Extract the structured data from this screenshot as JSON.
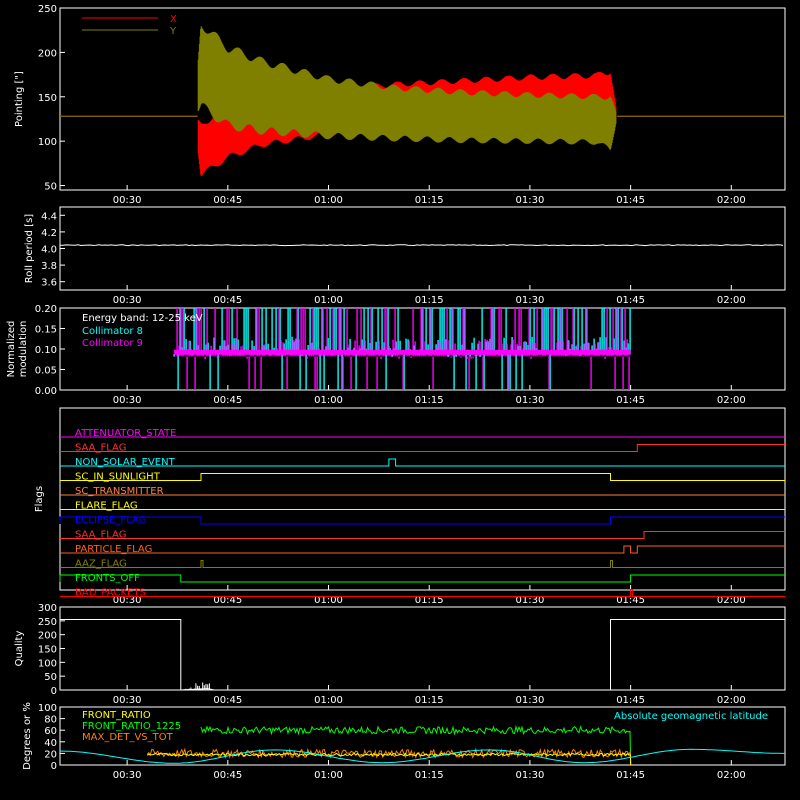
{
  "chart_data": [
    {
      "type": "line",
      "ylabel": "Pointing [\"]",
      "yticks": [
        "50",
        "100",
        "150",
        "200",
        "250"
      ],
      "ylim": [
        45,
        250
      ],
      "xticks": [
        "00:30",
        "00:45",
        "01:00",
        "01:15",
        "01:30",
        "01:45",
        "02:00"
      ],
      "xlim_minutes": [
        20,
        128
      ],
      "legend": [
        "X",
        "Y"
      ],
      "series": [
        {
          "name": "X",
          "color": "#ff0000",
          "x": [
            "00:20",
            "00:40",
            "00:41",
            "00:45",
            "00:50",
            "01:00",
            "01:10",
            "01:20",
            "01:30",
            "01:40",
            "01:42",
            "01:43",
            "02:08"
          ],
          "y_min": [
            128,
            128,
            62,
            82,
            96,
            108,
            114,
            117,
            119,
            120,
            100,
            128,
            128
          ],
          "y_max": [
            128,
            128,
            118,
            138,
            148,
            158,
            164,
            168,
            172,
            174,
            180,
            128,
            128
          ]
        },
        {
          "name": "Y",
          "color": "#808000",
          "x": [
            "00:20",
            "00:40",
            "00:41",
            "00:45",
            "00:50",
            "01:00",
            "01:10",
            "01:20",
            "01:30",
            "01:40",
            "01:42",
            "01:43",
            "02:08"
          ],
          "y_min": [
            128,
            128,
            140,
            118,
            112,
            106,
            103,
            101,
            100,
            99,
            90,
            128,
            128
          ],
          "y_max": [
            128,
            128,
            232,
            205,
            190,
            170,
            160,
            155,
            152,
            150,
            150,
            128,
            128
          ]
        }
      ]
    },
    {
      "type": "line",
      "ylabel": "Roll period [s]",
      "yticks": [
        "3.6",
        "3.8",
        "4.0",
        "4.2",
        "4.4"
      ],
      "ylim": [
        3.5,
        4.5
      ],
      "xticks": [
        "00:30",
        "00:45",
        "01:00",
        "01:15",
        "01:30",
        "01:45",
        "02:00"
      ],
      "series": [
        {
          "name": "",
          "color": "#ffffff",
          "x": [
            "00:20",
            "00:45",
            "01:00",
            "01:30",
            "01:45",
            "02:08"
          ],
          "y": [
            4.04,
            4.04,
            4.04,
            4.04,
            4.04,
            4.04
          ]
        }
      ]
    },
    {
      "type": "bar",
      "ylabel": "Normalized modulation",
      "yticks": [
        "0.00",
        "0.05",
        "0.10",
        "0.15",
        "0.20"
      ],
      "ylim": [
        0,
        0.2
      ],
      "xticks": [
        "00:30",
        "00:45",
        "01:00",
        "01:15",
        "01:30",
        "01:45",
        "02:00"
      ],
      "annotation": "Energy band: 12-25 keV",
      "series": [
        {
          "name": "Collimator 8",
          "color": "#00ffff",
          "x_range": [
            "00:37",
            "01:45"
          ],
          "baseline": 0.095,
          "max": 0.2
        },
        {
          "name": "Collimator 9",
          "color": "#ff00ff",
          "x_range": [
            "00:37",
            "01:45"
          ],
          "baseline": 0.09,
          "max": 0.2
        }
      ]
    },
    {
      "type": "line",
      "ylabel": "Flags",
      "xticks": [
        "00:30",
        "00:45",
        "01:00",
        "01:15",
        "01:30",
        "01:45",
        "02:00"
      ],
      "flags": [
        {
          "name": "ATTENUATOR_STATE",
          "color": "#ff00ff",
          "high": []
        },
        {
          "name": "SAA_FLAG",
          "color": "#ff3030",
          "high": [
            [
              "01:46",
              "02:08"
            ]
          ]
        },
        {
          "name": "NON_SOLAR_EVENT",
          "color": "#00ffff",
          "high": [
            [
              "01:09",
              "01:10"
            ]
          ]
        },
        {
          "name": "SC_IN_SUNLIGHT",
          "color": "#ffff00",
          "high": [
            [
              "00:41",
              "01:42"
            ]
          ]
        },
        {
          "name": "SC_TRANSMITTER",
          "color": "#ff8040",
          "high": []
        },
        {
          "name": "FLARE_FLAG",
          "color": "#ffff00",
          "high": []
        },
        {
          "name": "ECLIPSE_FLAG",
          "color": "#0000ff",
          "high": [
            [
              "00:20",
              "00:41"
            ],
            [
              "01:42",
              "02:08"
            ]
          ]
        },
        {
          "name": "SAA_FLAG",
          "color": "#ff3030",
          "high": [
            [
              "01:47",
              "02:08"
            ]
          ]
        },
        {
          "name": "PARTICLE_FLAG",
          "color": "#ff6020",
          "high": [
            [
              "01:44",
              "01:45"
            ],
            [
              "01:46",
              "02:08"
            ]
          ]
        },
        {
          "name": "AAZ_FLAG",
          "color": "#808000",
          "high": [
            [
              "00:41",
              "00:41"
            ],
            [
              "01:42",
              "01:42"
            ]
          ]
        },
        {
          "name": "FRONTS_OFF",
          "color": "#00ff00",
          "high": [
            [
              "00:20",
              "00:38"
            ],
            [
              "01:45",
              "02:08"
            ]
          ]
        },
        {
          "name": "BAD_PACKETS",
          "color": "#ff0000",
          "high": [
            [
              "01:45",
              "01:45"
            ]
          ]
        }
      ]
    },
    {
      "type": "line",
      "ylabel": "Quality",
      "yticks": [
        "0",
        "50",
        "100",
        "150",
        "200",
        "250",
        "300"
      ],
      "ylim": [
        0,
        300
      ],
      "xticks": [
        "00:30",
        "00:45",
        "01:00",
        "01:15",
        "01:30",
        "01:45",
        "02:00"
      ],
      "series": [
        {
          "name": "",
          "color": "#ffffff",
          "x": [
            "00:20",
            "00:38",
            "00:38",
            "00:42",
            "00:43",
            "01:42",
            "01:42",
            "02:08"
          ],
          "y": [
            255,
            255,
            0,
            5,
            0,
            0,
            255,
            255
          ]
        }
      ]
    },
    {
      "type": "line",
      "ylabel": "Degrees or %",
      "yticks": [
        "0",
        "20",
        "40",
        "60",
        "80",
        "100"
      ],
      "ylim": [
        0,
        100
      ],
      "xticks": [
        "00:30",
        "00:45",
        "01:00",
        "01:15",
        "01:30",
        "01:45",
        "02:00"
      ],
      "annotation": "Absolute geomagnetic latitude",
      "series": [
        {
          "name": "FRONT_RATIO",
          "color": "#ffff00",
          "x_range": [
            "00:33",
            "01:45"
          ],
          "level": 18
        },
        {
          "name": "FRONT_RATIO_1225",
          "color": "#00ff00",
          "x_range": [
            "00:41",
            "01:45"
          ],
          "level": 60
        },
        {
          "name": "MAX_DET_VS_TOT",
          "color": "#ff8000",
          "x_range": [
            "00:33",
            "01:45"
          ],
          "level": 20
        },
        {
          "name": "Absolute geomagnetic latitude",
          "color": "#00ffff",
          "x": [
            "00:20",
            "00:37",
            "00:52",
            "01:08",
            "01:24",
            "01:38",
            "01:54",
            "02:08"
          ],
          "y": [
            24,
            3,
            26,
            4,
            26,
            4,
            27,
            20
          ]
        }
      ]
    }
  ]
}
